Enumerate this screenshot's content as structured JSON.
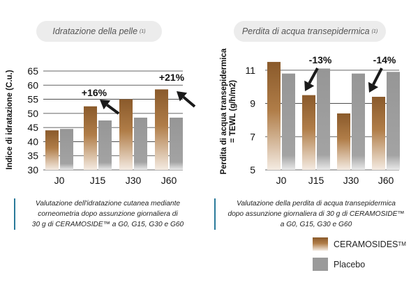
{
  "colors": {
    "ceramosides": "#9a6a38",
    "placebo": "#9a9a9a",
    "caption_rule": "#2a7a9a",
    "pill_bg": "#ececec",
    "arrow": "#1a1a1a"
  },
  "chart_data": [
    {
      "type": "bar",
      "title": "Idratazione della pelle",
      "title_note": "(1)",
      "ylabel": "Indice di idratazione (C.u.)",
      "xlabel": "",
      "ylim": [
        30,
        65
      ],
      "yticks": [
        30,
        35,
        40,
        45,
        50,
        55,
        60,
        65
      ],
      "grid": true,
      "categories": [
        "J0",
        "J15",
        "J30",
        "J60"
      ],
      "series": [
        {
          "name": "CERAMOSIDES™",
          "values": [
            44,
            52.5,
            55,
            58.5
          ]
        },
        {
          "name": "Placebo",
          "values": [
            44.5,
            47.5,
            48.5,
            48.5
          ]
        }
      ],
      "annotations": [
        {
          "text": "+16%",
          "category": "J15",
          "arrow": "up-left"
        },
        {
          "text": "+21%",
          "category": "J60",
          "arrow": "up-left"
        }
      ]
    },
    {
      "type": "bar",
      "title": "Perdita di acqua transepidermica",
      "title_note": "(1)",
      "ylabel": "Perdita di acqua transepidermica = TEWL (g/h/m2)",
      "xlabel": "",
      "ylim": [
        5,
        12
      ],
      "yticks": [
        5,
        7,
        9,
        11
      ],
      "grid": true,
      "categories": [
        "J0",
        "J15",
        "J30",
        "J60"
      ],
      "series": [
        {
          "name": "CERAMOSIDES™",
          "values": [
            11.5,
            9.5,
            8.4,
            9.4
          ]
        },
        {
          "name": "Placebo",
          "values": [
            10.8,
            11.1,
            10.8,
            10.9
          ]
        }
      ],
      "annotations": [
        {
          "text": "-13%",
          "category": "J15",
          "arrow": "down-left"
        },
        {
          "text": "-14%",
          "category": "J60",
          "arrow": "down-left"
        }
      ]
    }
  ],
  "captions": {
    "left": [
      "Valutazione dell'idratazione cutanea mediante",
      "corneometria dopo assunzione giornaliera di",
      "30 g di CERAMOSIDE™ a G0, G15, G30 e G60"
    ],
    "right": [
      "Valutazione della perdita di acqua transepidermica",
      "dopo assunzione giornaliera di 30 g di CERAMOSIDE™",
      "a G0, G15, G30 e G60"
    ]
  },
  "legend": {
    "item1": "CERAMOSIDES",
    "item1_mark": "TM",
    "item2": "Placebo"
  }
}
